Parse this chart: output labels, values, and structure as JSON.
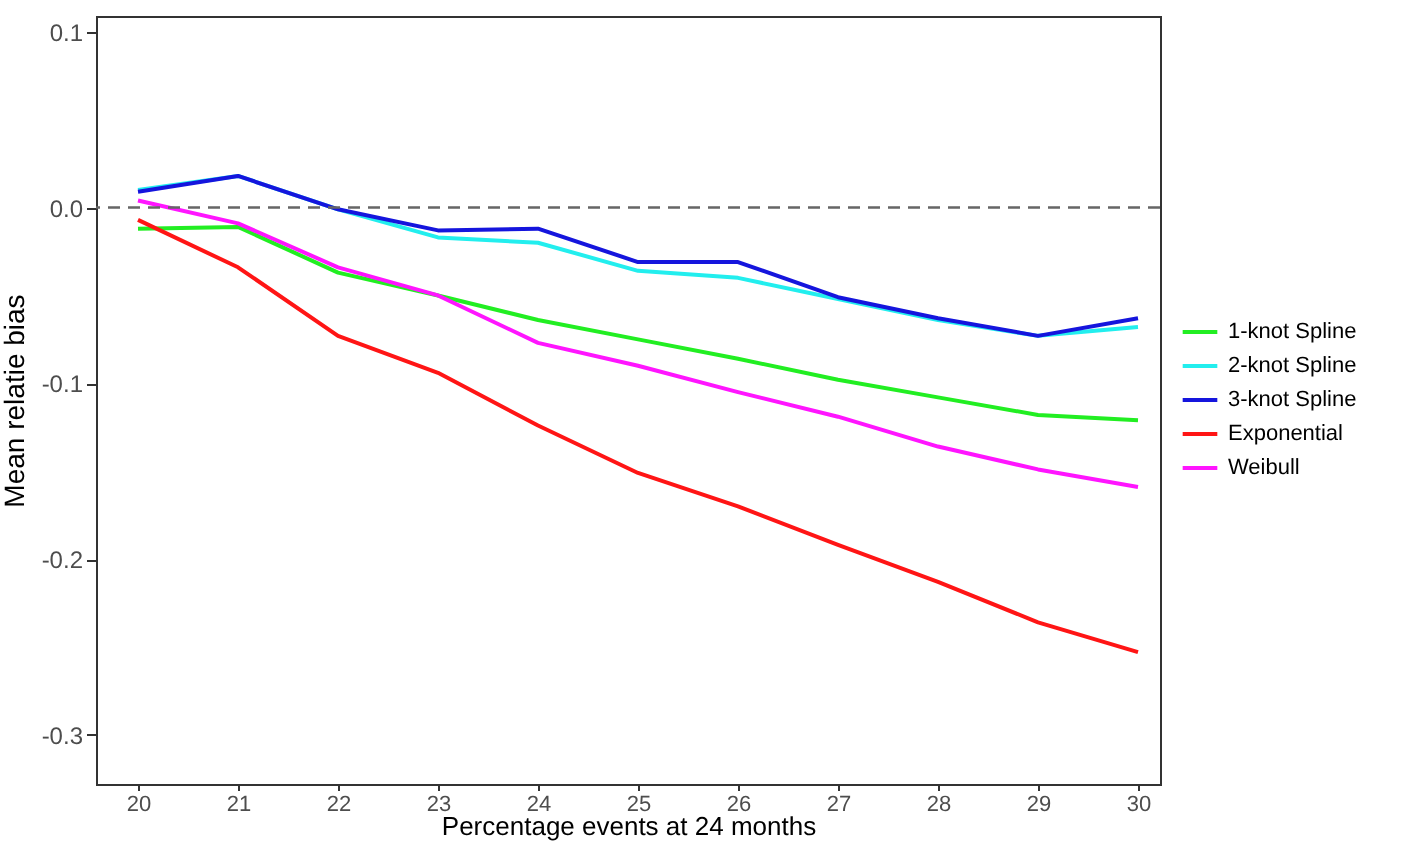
{
  "chart_data": {
    "type": "line",
    "xlabel": "Percentage events at 24 months",
    "ylabel": "Mean relatie bias",
    "x": [
      20,
      21,
      22,
      23,
      24,
      25,
      26,
      27,
      28,
      29,
      30
    ],
    "series": [
      {
        "name": "1-knot Spline",
        "color": "#22ee22",
        "values": [
          -0.012,
          -0.011,
          -0.037,
          -0.05,
          -0.064,
          -0.075,
          -0.086,
          -0.098,
          -0.108,
          -0.118,
          -0.121
        ]
      },
      {
        "name": "2-knot Spline",
        "color": "#22eeee",
        "values": [
          0.01,
          0.018,
          -0.001,
          -0.017,
          -0.02,
          -0.036,
          -0.04,
          -0.052,
          -0.064,
          -0.073,
          -0.068
        ]
      },
      {
        "name": "3-knot Spline",
        "color": "#1515dd",
        "values": [
          0.009,
          0.018,
          -0.001,
          -0.013,
          -0.012,
          -0.031,
          -0.031,
          -0.051,
          -0.063,
          -0.073,
          -0.063
        ]
      },
      {
        "name": "Exponential",
        "color": "#ff1515",
        "values": [
          -0.007,
          -0.034,
          -0.073,
          -0.094,
          -0.124,
          -0.151,
          -0.17,
          -0.192,
          -0.213,
          -0.236,
          -0.253
        ]
      },
      {
        "name": "Weibull",
        "color": "#ff15ff",
        "values": [
          0.004,
          -0.009,
          -0.034,
          -0.05,
          -0.077,
          -0.09,
          -0.105,
          -0.119,
          -0.136,
          -0.149,
          -0.159
        ]
      }
    ],
    "xlim": [
      19.58,
      30.22
    ],
    "xticks": [
      20,
      21,
      22,
      23,
      24,
      25,
      26,
      27,
      28,
      29,
      30
    ],
    "ylim": [
      -0.328,
      0.109
    ],
    "yticks": [
      {
        "value": -0.3,
        "label": "-0.3"
      },
      {
        "value": -0.2,
        "label": "-0.2"
      },
      {
        "value": -0.1,
        "label": "-0.1"
      },
      {
        "value": 0,
        "label": "0.0"
      },
      {
        "value": 0.1,
        "label": "0.1"
      }
    ],
    "ref_lines": [
      {
        "axis": "y",
        "value": 0,
        "color": "#666666",
        "line_style": "dashed"
      }
    ],
    "grid": false,
    "legend": "right",
    "line_style": "solid",
    "marker": "none"
  }
}
